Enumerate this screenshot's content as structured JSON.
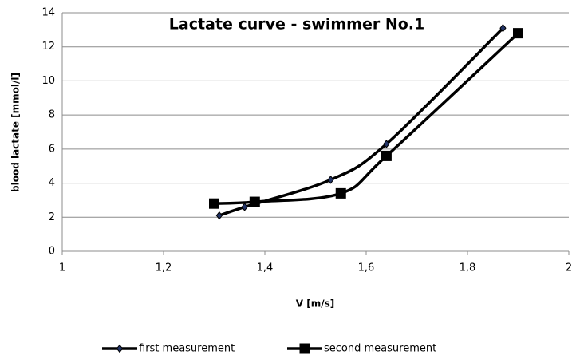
{
  "chart_data": {
    "type": "line",
    "title": "Lactate curve - swimmer No.1",
    "xlabel": "V [m/s]",
    "ylabel": "blood lactate [mmol/l]",
    "series": [
      {
        "name": "first measurement",
        "color": "#000000",
        "marker": "diamond",
        "x": [
          1.31,
          1.36,
          1.53,
          1.64,
          1.87
        ],
        "values": [
          2.1,
          2.6,
          4.2,
          6.3,
          13.1
        ]
      },
      {
        "name": "second measurement",
        "color": "#000000",
        "marker": "square",
        "x": [
          1.3,
          1.38,
          1.55,
          1.64,
          1.9
        ],
        "values": [
          2.8,
          2.9,
          3.4,
          5.6,
          12.8
        ]
      }
    ],
    "xlim": [
      1,
      2
    ],
    "xticks": [
      1,
      {
        "value": 1.2,
        "label": "1,2"
      },
      {
        "value": 1.4,
        "label": "1,4"
      },
      {
        "value": 1.6,
        "label": "1,6"
      },
      {
        "value": 1.8,
        "label": "1,8"
      },
      2
    ],
    "ylim": [
      0,
      14
    ],
    "yticks": [
      0,
      2,
      4,
      6,
      8,
      10,
      12,
      14
    ],
    "grid": true,
    "smooth": true,
    "legend": "bottom"
  }
}
